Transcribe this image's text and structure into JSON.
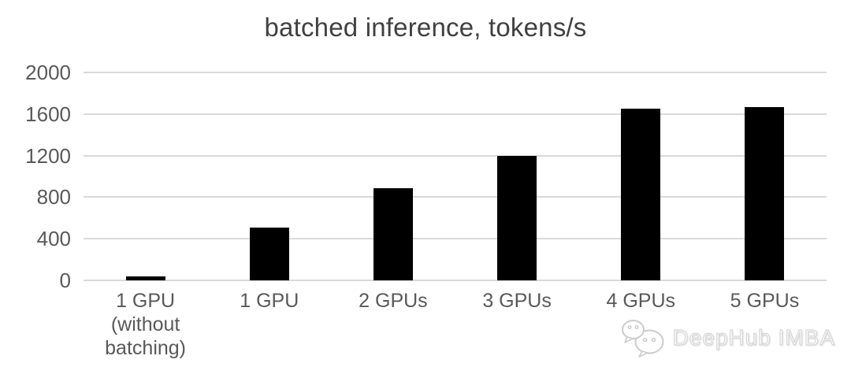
{
  "title": "batched inference, tokens/s",
  "chart_data": {
    "type": "bar",
    "title": "batched inference, tokens/s",
    "categories": [
      "1 GPU\n(without\nbatching)",
      "1 GPU",
      "2 GPUs",
      "3 GPUs",
      "4 GPUs",
      "5 GPUs"
    ],
    "values": [
      40,
      510,
      890,
      1200,
      1650,
      1670
    ],
    "xlabel": "",
    "ylabel": "",
    "ylim": [
      0,
      2000
    ],
    "yticks": [
      0,
      400,
      800,
      1200,
      1600,
      2000
    ],
    "grid": true,
    "legend_position": "none"
  },
  "watermark": {
    "icon": "wechat-icon",
    "text": "DeepHub IMBA"
  },
  "colors": {
    "background": "#ffffff",
    "bar": "#000000",
    "gridline": "#d9d9d9",
    "title_text": "#404040",
    "axis_text": "#595959",
    "watermark": "#d6d6d6"
  }
}
